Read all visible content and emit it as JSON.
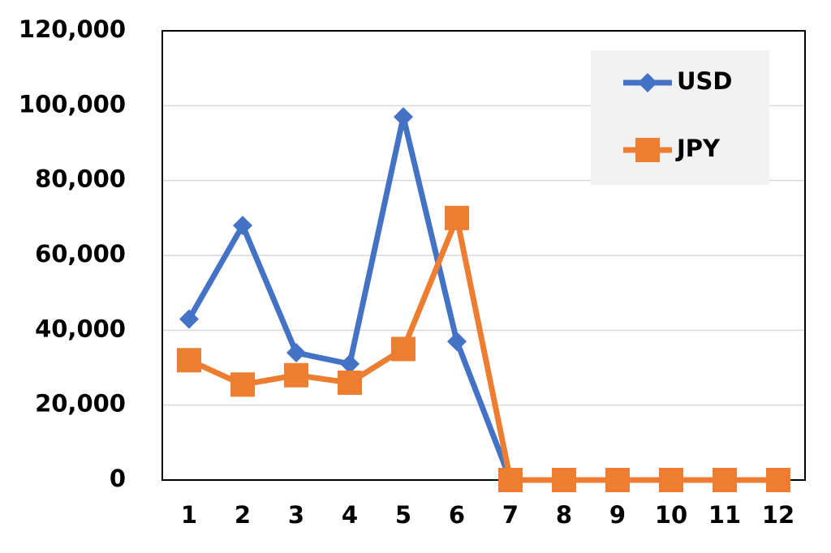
{
  "chart_data": {
    "type": "line",
    "categories": [
      "1",
      "2",
      "3",
      "4",
      "5",
      "6",
      "7",
      "8",
      "9",
      "10",
      "11",
      "12"
    ],
    "series": [
      {
        "name": "USD",
        "color": "#4472c4",
        "marker": "diamond",
        "values": [
          43000,
          68000,
          34000,
          31000,
          97000,
          37000,
          0,
          0,
          0,
          0,
          0,
          0
        ]
      },
      {
        "name": "JPY",
        "color": "#ed7d31",
        "marker": "square",
        "values": [
          32000,
          25500,
          28000,
          26000,
          35000,
          70000,
          0,
          0,
          0,
          0,
          0,
          0
        ]
      }
    ],
    "ylim": [
      0,
      120000
    ],
    "yticks": [
      0,
      {
        "value": 20000,
        "label": "20,000"
      },
      {
        "value": 40000,
        "label": "40,000"
      },
      {
        "value": 60000,
        "label": "60,000"
      },
      {
        "value": 80000,
        "label": "80,000"
      },
      {
        "value": 100000,
        "label": "100,000"
      },
      {
        "value": 120000,
        "label": "120,000"
      }
    ],
    "grid": true,
    "legend": "top-right"
  }
}
